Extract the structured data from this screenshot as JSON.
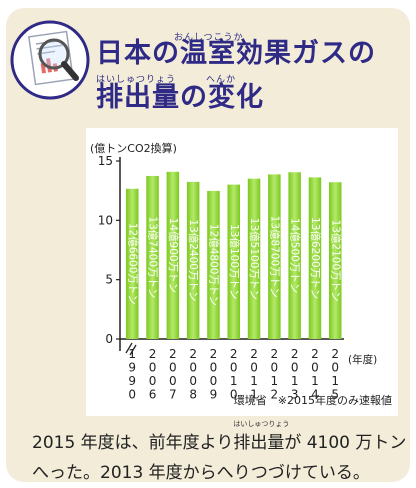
{
  "header": {
    "title_line1": "日本の温室効果ガスの",
    "title_line1_ruby": "おんしつこうか",
    "title_line2": "排出量の変化",
    "title_line2_ruby_a": "はいしゅつりょう",
    "title_line2_ruby_b": "へんか",
    "icon": "magnifier-over-report-icon"
  },
  "chart_data": {
    "type": "bar",
    "ylabel": "(億トンCO2換算)",
    "xlabel": "(年度)",
    "ylim": [
      0,
      15
    ],
    "yticks": [
      0,
      5,
      10,
      15
    ],
    "grid": false,
    "axis_break": true,
    "categories": [
      [
        "1",
        "9",
        "9",
        "0"
      ],
      [
        "2",
        "0",
        "0",
        "6"
      ],
      [
        "2",
        "0",
        "0",
        "7"
      ],
      [
        "2",
        "0",
        "0",
        "8"
      ],
      [
        "2",
        "0",
        "0",
        "9"
      ],
      [
        "2",
        "0",
        "1",
        "0"
      ],
      [
        "2",
        "0",
        "1",
        "1"
      ],
      [
        "2",
        "0",
        "1",
        "2"
      ],
      [
        "2",
        "0",
        "1",
        "3"
      ],
      [
        "2",
        "0",
        "1",
        "4"
      ],
      [
        "2",
        "0",
        "1",
        "5"
      ]
    ],
    "values": [
      12.66,
      13.74,
      14.09,
      13.24,
      12.48,
      13.01,
      13.51,
      13.87,
      14.05,
      13.62,
      13.21
    ],
    "labels": [
      "12億6600万トン",
      "13億7400万トン",
      "14億900万トン",
      "13億2400万トン",
      "12億4800万トン",
      "13億100万トン",
      "13億5100万トン",
      "13億8700万トン",
      "14億500万トン",
      "13億6200万トン",
      "13億2100万トン"
    ],
    "note": "環境省　※2015年度のみ速報値",
    "colors": {
      "bar": "#7ac91e",
      "bar_light": "#b5e86a",
      "axis": "#222222"
    }
  },
  "caption": {
    "part1": "2015 年度は、前年度より",
    "ruby_word": "排出量",
    "ruby_reading": "はいしゅつりょう",
    "part2": "が 4100 万トンへった。2013 年度からへりつづけている。"
  }
}
